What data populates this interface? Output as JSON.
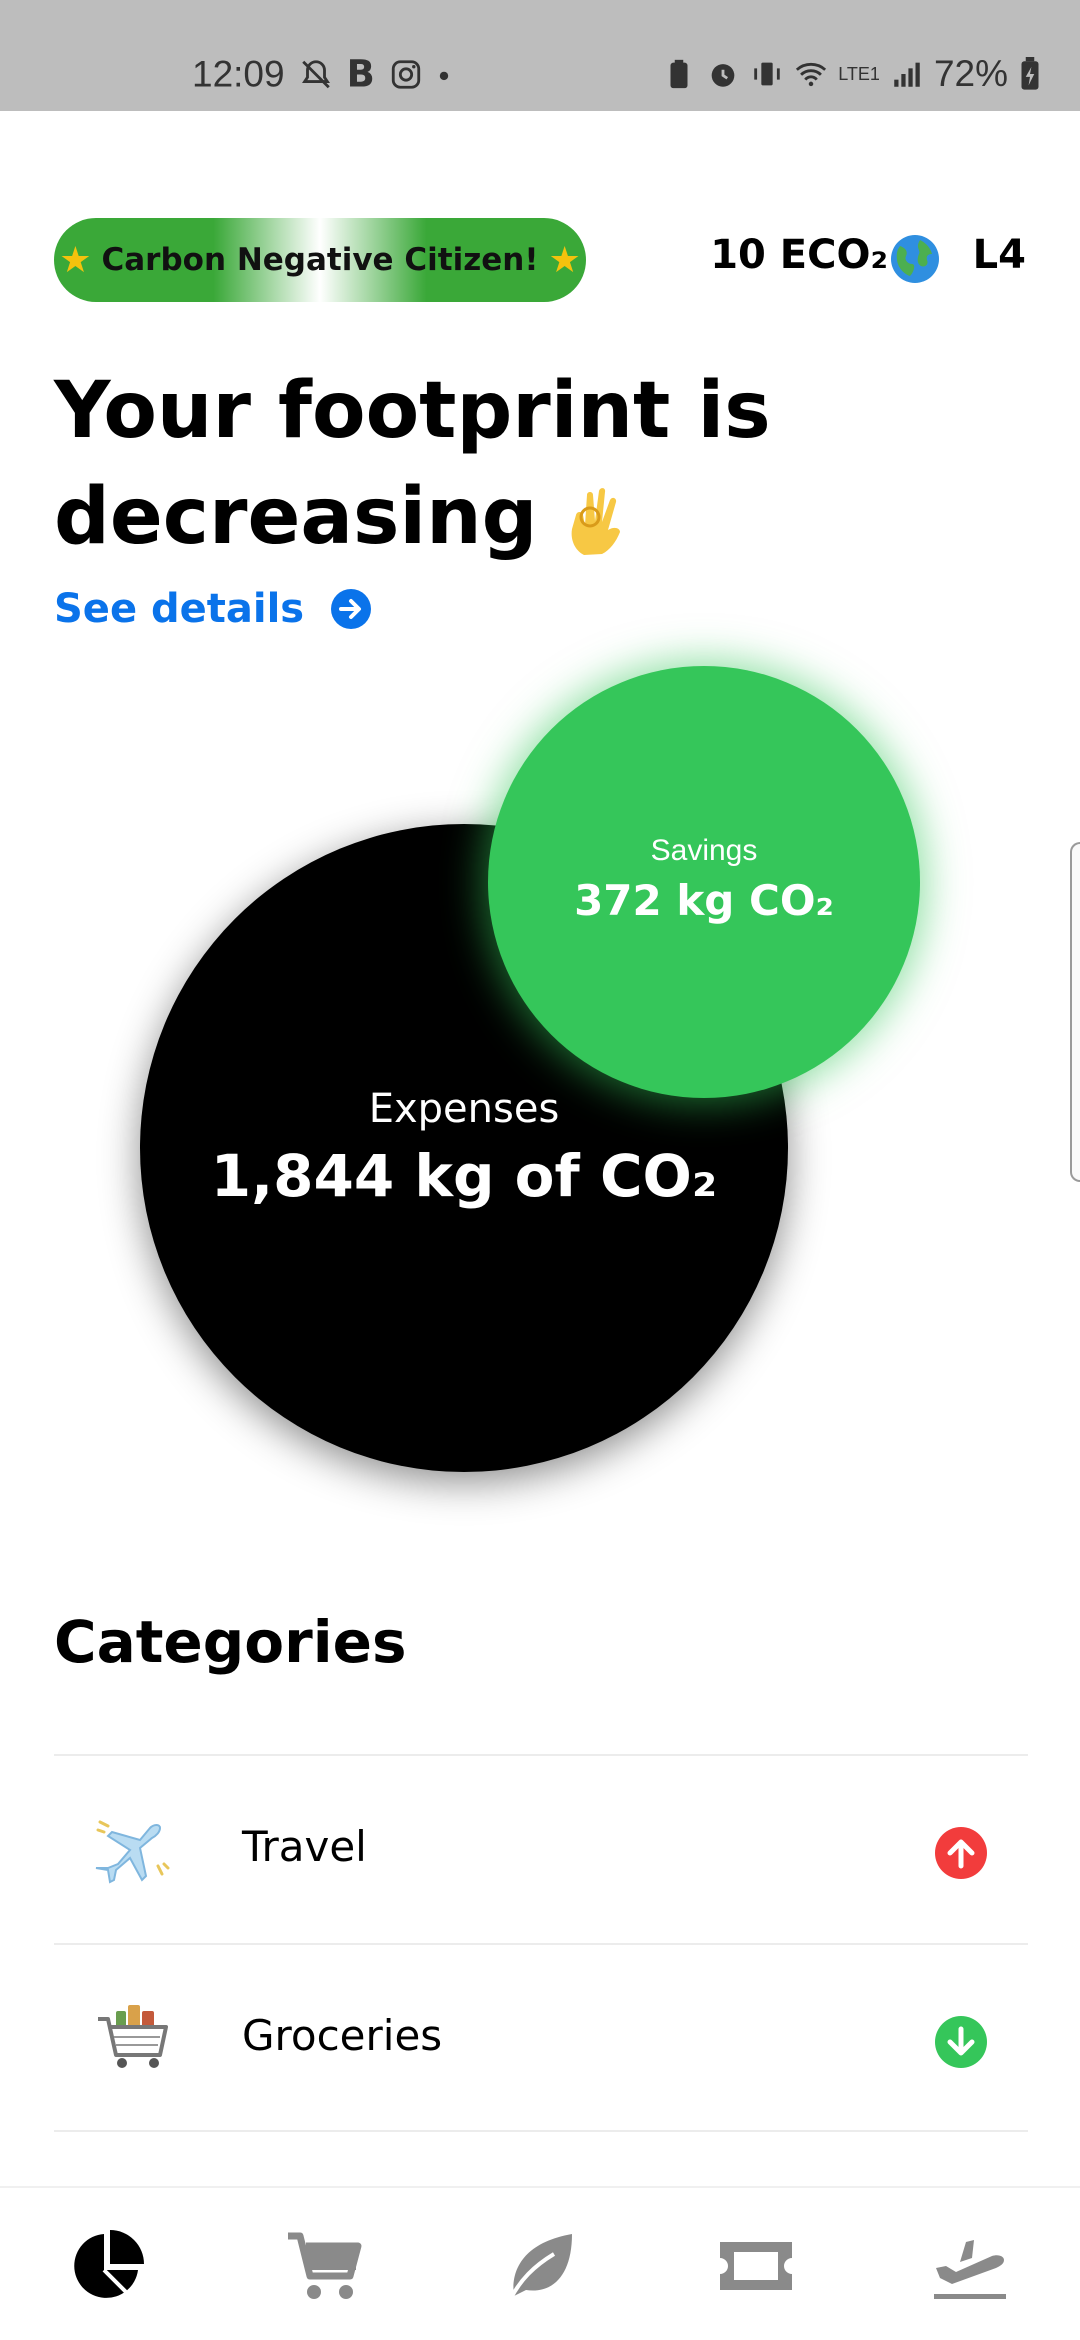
{
  "status_bar": {
    "time": "12:09",
    "battery": "72%",
    "network": "LTE1"
  },
  "header": {
    "badge_label": "Carbon Negative Citizen!",
    "eco_count": "10 ECO₂",
    "level": "L4"
  },
  "headline": {
    "line1": "Your footprint is",
    "line2": "decreasing",
    "link": "See details"
  },
  "footprint": {
    "expenses_label": "Expenses",
    "expenses_value": "1,844 kg of CO₂",
    "savings_label": "Savings",
    "savings_value": "372 kg CO₂"
  },
  "categories": {
    "title": "Categories",
    "items": [
      {
        "label": "Travel",
        "icon": "airplane-icon",
        "trend": "up",
        "trend_color": "#f23c3c"
      },
      {
        "label": "Groceries",
        "icon": "shopping-cart-icon",
        "trend": "down",
        "trend_color": "#35c65a"
      }
    ]
  },
  "bottom_nav": {
    "items": [
      "pie-chart-icon",
      "cart-icon",
      "leaf-icon",
      "ticket-icon",
      "plane-departure-icon"
    ],
    "active": 0
  },
  "colors": {
    "accent_blue": "#0a73ea",
    "savings_green": "#35c65a",
    "badge_green": "#3aa838",
    "up_red": "#f23c3c"
  }
}
